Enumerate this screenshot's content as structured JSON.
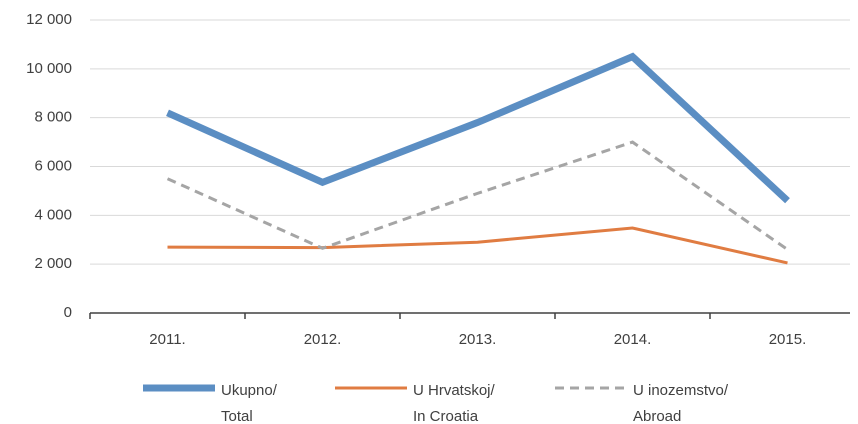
{
  "chart_data": {
    "type": "line",
    "categories": [
      "2011.",
      "2012.",
      "2013.",
      "2014.",
      "2015."
    ],
    "series": [
      {
        "name": "Ukupno/\nTotal",
        "color": "#5b8ec3",
        "width": 7,
        "dash": false,
        "values": [
          8200,
          5350,
          7800,
          10500,
          4600
        ]
      },
      {
        "name": "U Hrvatskoj/\nIn Croatia",
        "color": "#e07c42",
        "width": 3,
        "dash": false,
        "values": [
          2700,
          2680,
          2900,
          3480,
          2050
        ]
      },
      {
        "name": "U inozemstvo/\nAbroad",
        "color": "#a5a5a5",
        "width": 3,
        "dash": true,
        "values": [
          5500,
          2650,
          4900,
          7000,
          2600
        ]
      }
    ],
    "ylim": [
      0,
      12000
    ],
    "yticks": [
      0,
      {
        "value": 2000,
        "label": "2 000"
      },
      {
        "value": 4000,
        "label": "4 000"
      },
      {
        "value": 6000,
        "label": "6 000"
      },
      {
        "value": 8000,
        "label": "8 000"
      },
      {
        "value": 10000,
        "label": "10 000"
      },
      {
        "value": 12000,
        "label": "12 000"
      }
    ],
    "grid": true
  }
}
